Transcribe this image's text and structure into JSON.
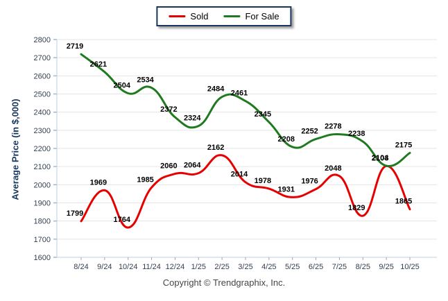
{
  "legend": {
    "items": [
      {
        "label": "Sold",
        "color": "#e60000"
      },
      {
        "label": "For Sale",
        "color": "#1f7a1f"
      }
    ]
  },
  "footer": {
    "copyright": "Copyright © Trendgraphix, Inc."
  },
  "chart_data": {
    "type": "line",
    "title": "",
    "xlabel": "",
    "ylabel": "Average Price (in $,000)",
    "ylim": [
      1600,
      2800
    ],
    "ytick_step": 100,
    "grid": true,
    "legend_position": "top-center",
    "line_style": "smooth",
    "categories": [
      "8/24",
      "9/24",
      "10/24",
      "11/24",
      "12/24",
      "1/25",
      "2/25",
      "3/25",
      "4/25",
      "5/25",
      "6/25",
      "7/25",
      "8/25",
      "9/25",
      "10/25"
    ],
    "series": [
      {
        "name": "Sold",
        "color": "#e60000",
        "values": [
          1799,
          1969,
          1764,
          1985,
          2060,
          2064,
          2162,
          2014,
          1978,
          1931,
          1976,
          2048,
          1829,
          2103,
          1865
        ]
      },
      {
        "name": "For Sale",
        "color": "#1f7a1f",
        "values": [
          2719,
          2621,
          2504,
          2534,
          2372,
          2324,
          2484,
          2461,
          2345,
          2208,
          2252,
          2278,
          2238,
          2104,
          2175
        ]
      }
    ],
    "colors": {
      "grid": "#e5e5e5",
      "axis_blue_tick": "#95b3d7",
      "axis_line": "#bcd0e6",
      "x_tick": "#a6a6a6",
      "tick_label": "#333f50",
      "data_label": "#000000"
    }
  }
}
